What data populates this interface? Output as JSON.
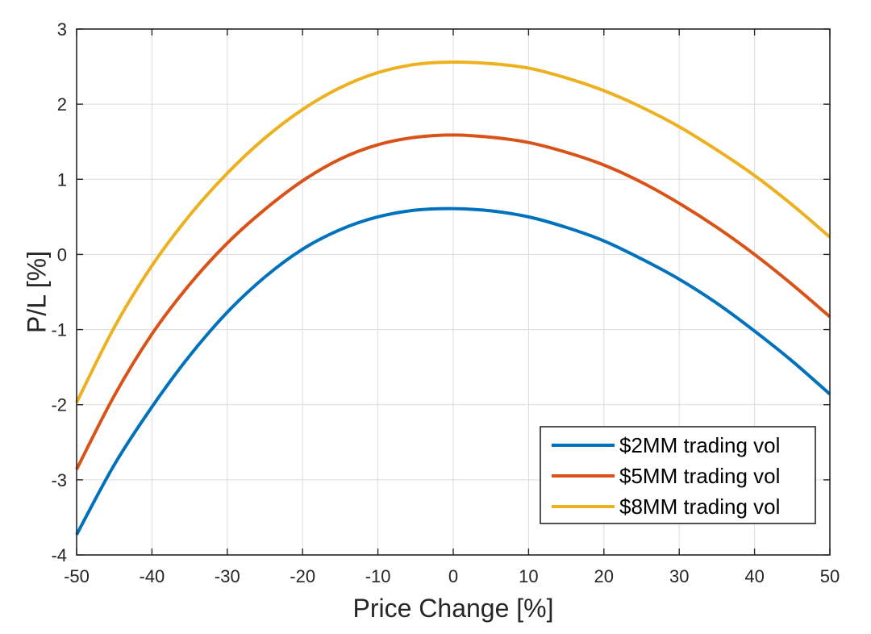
{
  "chart_data": {
    "type": "line",
    "xlabel": "Price Change [%]",
    "ylabel": "P/L [%]",
    "xlim": [
      -50,
      50
    ],
    "ylim": [
      -4,
      3
    ],
    "xticks": [
      -50,
      -40,
      -30,
      -20,
      -10,
      0,
      10,
      20,
      30,
      40,
      50
    ],
    "yticks": [
      -4,
      -3,
      -2,
      -1,
      0,
      1,
      2,
      3
    ],
    "x": [
      -50,
      -45,
      -40,
      -35,
      -30,
      -25,
      -20,
      -15,
      -10,
      -5,
      0,
      5,
      10,
      15,
      20,
      25,
      30,
      35,
      40,
      45,
      50
    ],
    "series": [
      {
        "name": "$2MM trading vol",
        "color": "#0072BD",
        "values": [
          -3.73,
          -2.8,
          -2.03,
          -1.35,
          -0.77,
          -0.3,
          0.07,
          0.33,
          0.5,
          0.59,
          0.61,
          0.58,
          0.5,
          0.36,
          0.18,
          -0.06,
          -0.33,
          -0.65,
          -1.02,
          -1.42,
          -1.86
        ]
      },
      {
        "name": "$5MM trading vol",
        "color": "#D95319",
        "values": [
          -2.86,
          -1.88,
          -1.06,
          -0.4,
          0.15,
          0.6,
          0.98,
          1.27,
          1.46,
          1.56,
          1.59,
          1.56,
          1.49,
          1.36,
          1.19,
          0.96,
          0.68,
          0.36,
          0.0,
          -0.4,
          -0.83
        ]
      },
      {
        "name": "$8MM trading vol",
        "color": "#EDB120",
        "values": [
          -1.97,
          -0.97,
          -0.15,
          0.52,
          1.08,
          1.55,
          1.93,
          2.22,
          2.42,
          2.53,
          2.56,
          2.54,
          2.48,
          2.35,
          2.18,
          1.96,
          1.7,
          1.39,
          1.05,
          0.66,
          0.23
        ]
      }
    ],
    "grid": true,
    "legend_position": "bottom-right"
  }
}
